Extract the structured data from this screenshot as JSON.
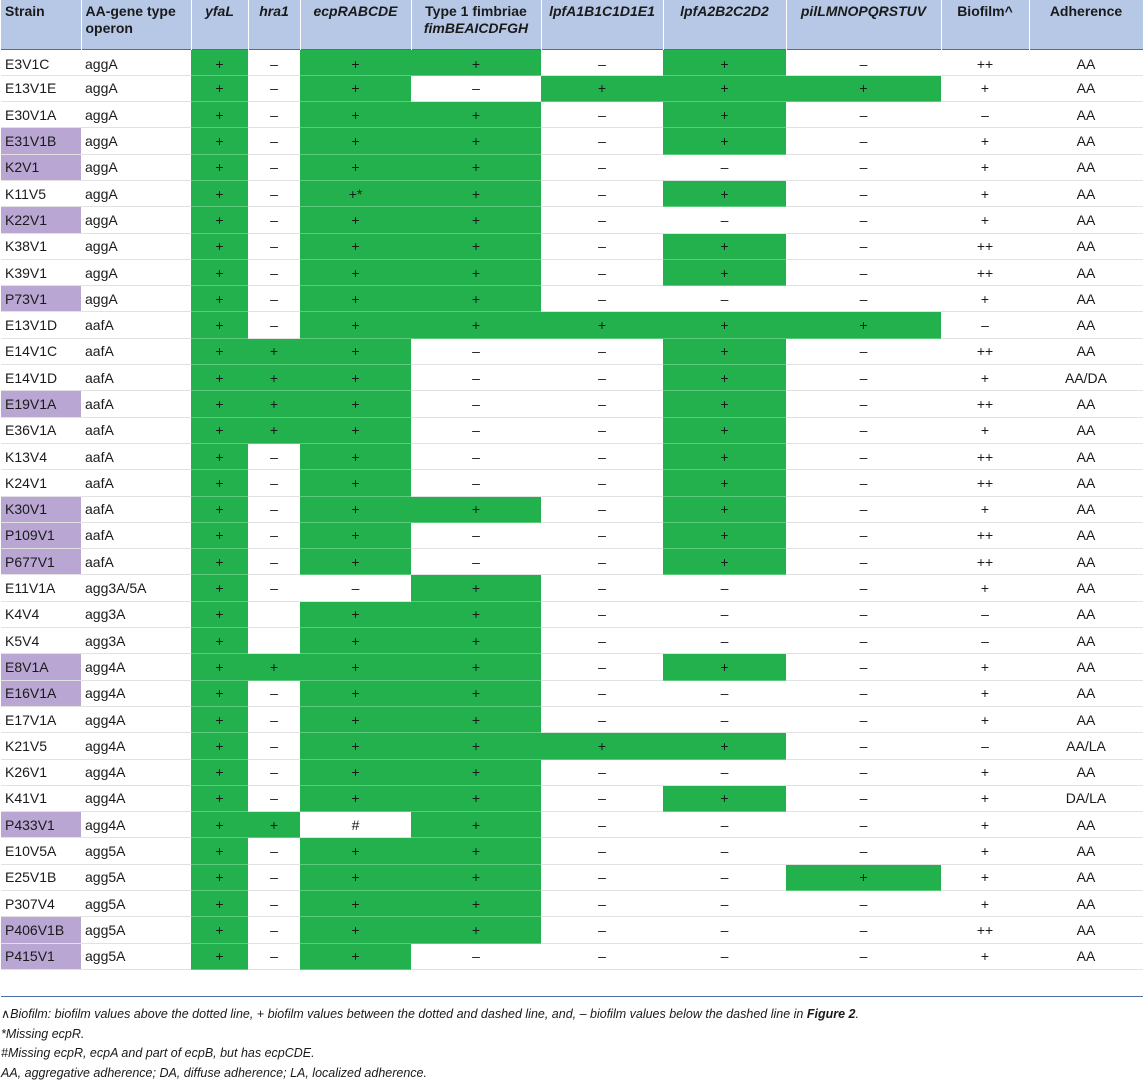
{
  "headers": {
    "strain": "Strain",
    "aa_l1": "AA-gene type",
    "aa_l2": "operon",
    "yfal": "yfaL",
    "hra1": "hra1",
    "ecp": "ecpRABCDE",
    "t1_l1": "Type 1 fimbriae",
    "t1_l2": "fimBEAICDFGH",
    "lpf1": "lpfA1B1C1D1E1",
    "lpf2": "lpfA2B2C2D2",
    "pil": "pilLMNOPQRSTUV",
    "biofilm": "Biofilm^",
    "adherence": "Adherence"
  },
  "colors": {
    "present": "#22b14c",
    "highlight": "#b9a6d3",
    "header": "#b6c8e6"
  },
  "rows": [
    {
      "strain": "E3V1C",
      "op": "aggA",
      "hl": false,
      "cells": [
        "+",
        "–",
        "+",
        "+",
        "–",
        "+",
        "–"
      ],
      "green": [
        1,
        0,
        1,
        1,
        0,
        1,
        0
      ],
      "bio": "++",
      "adh": "AA"
    },
    {
      "strain": "E13V1E",
      "op": "aggA",
      "hl": false,
      "cells": [
        "+",
        "–",
        "+",
        "–",
        "+",
        "+",
        "+"
      ],
      "green": [
        1,
        0,
        1,
        0,
        1,
        1,
        1
      ],
      "bio": "+",
      "adh": "AA"
    },
    {
      "strain": "E30V1A",
      "op": "aggA",
      "hl": false,
      "cells": [
        "+",
        "–",
        "+",
        "+",
        "–",
        "+",
        "–"
      ],
      "green": [
        1,
        0,
        1,
        1,
        0,
        1,
        0
      ],
      "bio": "–",
      "adh": "AA"
    },
    {
      "strain": "E31V1B",
      "op": "aggA",
      "hl": true,
      "cells": [
        "+",
        "–",
        "+",
        "+",
        "–",
        "+",
        "–"
      ],
      "green": [
        1,
        0,
        1,
        1,
        0,
        1,
        0
      ],
      "bio": "+",
      "adh": "AA"
    },
    {
      "strain": "K2V1",
      "op": "aggA",
      "hl": true,
      "cells": [
        "+",
        "–",
        "+",
        "+",
        "–",
        "–",
        "–"
      ],
      "green": [
        1,
        0,
        1,
        1,
        0,
        0,
        0
      ],
      "bio": "+",
      "adh": "AA"
    },
    {
      "strain": "K11V5",
      "op": "aggA",
      "hl": false,
      "cells": [
        "+",
        "–",
        "+*",
        "+",
        "–",
        "+",
        "–"
      ],
      "green": [
        1,
        0,
        1,
        1,
        0,
        1,
        0
      ],
      "bio": "+",
      "adh": "AA"
    },
    {
      "strain": "K22V1",
      "op": "aggA",
      "hl": true,
      "cells": [
        "+",
        "–",
        "+",
        "+",
        "–",
        "–",
        "–"
      ],
      "green": [
        1,
        0,
        1,
        1,
        0,
        0,
        0
      ],
      "bio": "+",
      "adh": "AA"
    },
    {
      "strain": "K38V1",
      "op": "aggA",
      "hl": false,
      "cells": [
        "+",
        "–",
        "+",
        "+",
        "–",
        "+",
        "–"
      ],
      "green": [
        1,
        0,
        1,
        1,
        0,
        1,
        0
      ],
      "bio": "++",
      "adh": "AA"
    },
    {
      "strain": "K39V1",
      "op": "aggA",
      "hl": false,
      "cells": [
        "+",
        "–",
        "+",
        "+",
        "–",
        "+",
        "–"
      ],
      "green": [
        1,
        0,
        1,
        1,
        0,
        1,
        0
      ],
      "bio": "++",
      "adh": "AA"
    },
    {
      "strain": "P73V1",
      "op": "aggA",
      "hl": true,
      "cells": [
        "+",
        "–",
        "+",
        "+",
        "–",
        "–",
        "–"
      ],
      "green": [
        1,
        0,
        1,
        1,
        0,
        0,
        0
      ],
      "bio": "+",
      "adh": "AA"
    },
    {
      "strain": "E13V1D",
      "op": "aafA",
      "hl": false,
      "cells": [
        "+",
        "–",
        "+",
        "+",
        "+",
        "+",
        "+"
      ],
      "green": [
        1,
        0,
        1,
        1,
        1,
        1,
        1
      ],
      "bio": "–",
      "adh": "AA"
    },
    {
      "strain": "E14V1C",
      "op": "aafA",
      "hl": false,
      "cells": [
        "+",
        "+",
        "+",
        "–",
        "–",
        "+",
        "–"
      ],
      "green": [
        1,
        1,
        1,
        0,
        0,
        1,
        0
      ],
      "bio": "++",
      "adh": "AA"
    },
    {
      "strain": "E14V1D",
      "op": "aafA",
      "hl": false,
      "cells": [
        "+",
        "+",
        "+",
        "–",
        "–",
        "+",
        "–"
      ],
      "green": [
        1,
        1,
        1,
        0,
        0,
        1,
        0
      ],
      "bio": "+",
      "adh": "AA/DA"
    },
    {
      "strain": "E19V1A",
      "op": "aafA",
      "hl": true,
      "cells": [
        "+",
        "+",
        "+",
        "–",
        "–",
        "+",
        "–"
      ],
      "green": [
        1,
        1,
        1,
        0,
        0,
        1,
        0
      ],
      "bio": "++",
      "adh": "AA"
    },
    {
      "strain": "E36V1A",
      "op": "aafA",
      "hl": false,
      "cells": [
        "+",
        "+",
        "+",
        "–",
        "–",
        "+",
        "–"
      ],
      "green": [
        1,
        1,
        1,
        0,
        0,
        1,
        0
      ],
      "bio": "+",
      "adh": "AA"
    },
    {
      "strain": "K13V4",
      "op": "aafA",
      "hl": false,
      "cells": [
        "+",
        "–",
        "+",
        "–",
        "–",
        "+",
        "–"
      ],
      "green": [
        1,
        0,
        1,
        0,
        0,
        1,
        0
      ],
      "bio": "++",
      "adh": "AA"
    },
    {
      "strain": "K24V1",
      "op": "aafA",
      "hl": false,
      "cells": [
        "+",
        "–",
        "+",
        "–",
        "–",
        "+",
        "–"
      ],
      "green": [
        1,
        0,
        1,
        0,
        0,
        1,
        0
      ],
      "bio": "++",
      "adh": "AA"
    },
    {
      "strain": "K30V1",
      "op": "aafA",
      "hl": true,
      "cells": [
        "+",
        "–",
        "+",
        "+",
        "–",
        "+",
        "–"
      ],
      "green": [
        1,
        0,
        1,
        1,
        0,
        1,
        0
      ],
      "bio": "+",
      "adh": "AA"
    },
    {
      "strain": "P109V1",
      "op": "aafA",
      "hl": true,
      "cells": [
        "+",
        "–",
        "+",
        "–",
        "–",
        "+",
        "–"
      ],
      "green": [
        1,
        0,
        1,
        0,
        0,
        1,
        0
      ],
      "bio": "++",
      "adh": "AA"
    },
    {
      "strain": "P677V1",
      "op": "aafA",
      "hl": true,
      "cells": [
        "+",
        "–",
        "+",
        "–",
        "–",
        "+",
        "–"
      ],
      "green": [
        1,
        0,
        1,
        0,
        0,
        1,
        0
      ],
      "bio": "++",
      "adh": "AA"
    },
    {
      "strain": "E11V1A",
      "op": "agg3A/5A",
      "hl": false,
      "cells": [
        "+",
        "–",
        "–",
        "+",
        "–",
        "–",
        "–"
      ],
      "green": [
        1,
        0,
        0,
        1,
        0,
        0,
        0
      ],
      "bio": "+",
      "adh": "AA"
    },
    {
      "strain": "K4V4",
      "op": "agg3A",
      "hl": false,
      "cells": [
        "+",
        "",
        "+",
        "+",
        "–",
        "–",
        "–"
      ],
      "green": [
        1,
        0,
        1,
        1,
        0,
        0,
        0
      ],
      "bio": "–",
      "adh": "AA"
    },
    {
      "strain": "K5V4",
      "op": "agg3A",
      "hl": false,
      "cells": [
        "+",
        "",
        "+",
        "+",
        "–",
        "–",
        "–"
      ],
      "green": [
        1,
        0,
        1,
        1,
        0,
        0,
        0
      ],
      "bio": "–",
      "adh": "AA"
    },
    {
      "strain": "E8V1A",
      "op": "agg4A",
      "hl": true,
      "cells": [
        "+",
        "+",
        "+",
        "+",
        "–",
        "+",
        "–"
      ],
      "green": [
        1,
        1,
        1,
        1,
        0,
        1,
        0
      ],
      "bio": "+",
      "adh": "AA"
    },
    {
      "strain": "E16V1A",
      "op": "agg4A",
      "hl": true,
      "cells": [
        "+",
        "–",
        "+",
        "+",
        "–",
        "–",
        "–"
      ],
      "green": [
        1,
        0,
        1,
        1,
        0,
        0,
        0
      ],
      "bio": "+",
      "adh": "AA"
    },
    {
      "strain": "E17V1A",
      "op": "agg4A",
      "hl": false,
      "cells": [
        "+",
        "–",
        "+",
        "+",
        "–",
        "–",
        "–"
      ],
      "green": [
        1,
        0,
        1,
        1,
        0,
        0,
        0
      ],
      "bio": "+",
      "adh": "AA"
    },
    {
      "strain": "K21V5",
      "op": "agg4A",
      "hl": false,
      "cells": [
        "+",
        "–",
        "+",
        "+",
        "+",
        "+",
        "–"
      ],
      "green": [
        1,
        0,
        1,
        1,
        1,
        1,
        0
      ],
      "bio": "–",
      "adh": "AA/LA"
    },
    {
      "strain": "K26V1",
      "op": "agg4A",
      "hl": false,
      "cells": [
        "+",
        "–",
        "+",
        "+",
        "–",
        "–",
        "–"
      ],
      "green": [
        1,
        0,
        1,
        1,
        0,
        0,
        0
      ],
      "bio": "+",
      "adh": "AA"
    },
    {
      "strain": "K41V1",
      "op": "agg4A",
      "hl": false,
      "cells": [
        "+",
        "–",
        "+",
        "+",
        "–",
        "+",
        "–"
      ],
      "green": [
        1,
        0,
        1,
        1,
        0,
        1,
        0
      ],
      "bio": "+",
      "adh": "DA/LA"
    },
    {
      "strain": "P433V1",
      "op": "agg4A",
      "hl": true,
      "cells": [
        "+",
        "+",
        "#",
        "+",
        "–",
        "–",
        "–"
      ],
      "green": [
        1,
        1,
        0,
        1,
        0,
        0,
        0
      ],
      "bio": "+",
      "adh": "AA"
    },
    {
      "strain": "E10V5A",
      "op": "agg5A",
      "hl": false,
      "cells": [
        "+",
        "–",
        "+",
        "+",
        "–",
        "–",
        "–"
      ],
      "green": [
        1,
        0,
        1,
        1,
        0,
        0,
        0
      ],
      "bio": "+",
      "adh": "AA"
    },
    {
      "strain": "E25V1B",
      "op": "agg5A",
      "hl": false,
      "cells": [
        "+",
        "–",
        "+",
        "+",
        "–",
        "–",
        "+"
      ],
      "green": [
        1,
        0,
        1,
        1,
        0,
        0,
        1
      ],
      "bio": "+",
      "adh": "AA"
    },
    {
      "strain": "P307V4",
      "op": "agg5A",
      "hl": false,
      "cells": [
        "+",
        "–",
        "+",
        "+",
        "–",
        "–",
        "–"
      ],
      "green": [
        1,
        0,
        1,
        1,
        0,
        0,
        0
      ],
      "bio": "+",
      "adh": "AA"
    },
    {
      "strain": "P406V1B",
      "op": "agg5A",
      "hl": true,
      "cells": [
        "+",
        "–",
        "+",
        "+",
        "–",
        "–",
        "–"
      ],
      "green": [
        1,
        0,
        1,
        1,
        0,
        0,
        0
      ],
      "bio": "++",
      "adh": "AA"
    },
    {
      "strain": "P415V1",
      "op": "agg5A",
      "hl": true,
      "cells": [
        "+",
        "–",
        "+",
        "–",
        "–",
        "–",
        "–"
      ],
      "green": [
        1,
        0,
        1,
        0,
        0,
        0,
        0
      ],
      "bio": "+",
      "adh": "AA"
    }
  ],
  "notes": {
    "n1_a": "∧Biofilm: biofilm values above the dotted line, + biofilm values between the dotted and dashed line, and, – biofilm values below the dashed line in ",
    "n1_b": "Figure 2",
    "n1_c": ".",
    "n2": "*Missing ecpR.",
    "n3": "#Missing ecpR, ecpA and part of ecpB, but has ecpCDE.",
    "n4": "AA, aggregative adherence; DA, diffuse adherence; LA, localized adherence."
  }
}
